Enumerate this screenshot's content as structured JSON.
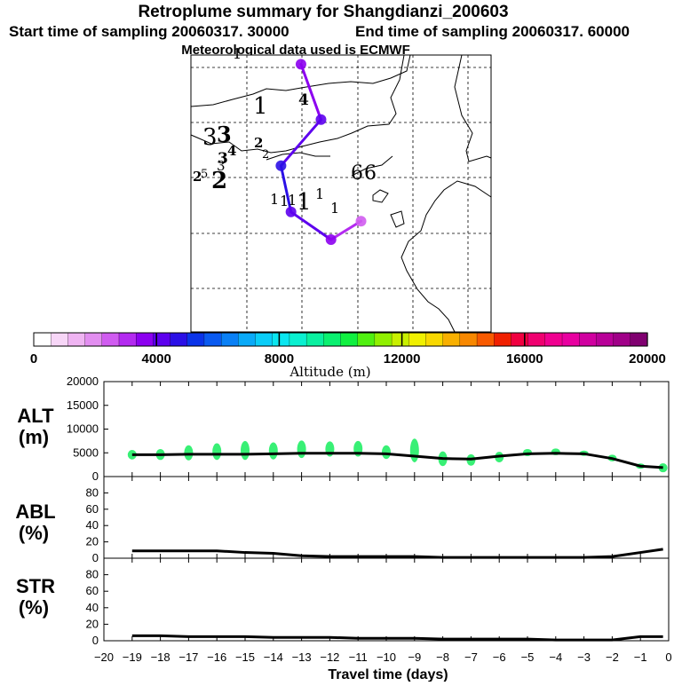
{
  "chart_data": {
    "type": "retroplume_summary",
    "title": "Retroplume summary for Shangdianzi_200603",
    "subtitle_start": "Start time of sampling 20060317. 30000",
    "subtitle_end": "End time of sampling 20060317. 60000",
    "subtitle_met": "Meteorological data used is ECMWF",
    "colorbar": {
      "label": "Altitude (m)",
      "range": [
        0,
        20000
      ],
      "ticks": [
        "0",
        "4000",
        "8000",
        "12000",
        "16000",
        "20000"
      ],
      "colors": [
        "#ffffff",
        "#f7d6f7",
        "#efb4f2",
        "#e28ef0",
        "#d05cf0",
        "#b32af0",
        "#8c00f0",
        "#5d00ee",
        "#2b10e6",
        "#0a33e8",
        "#0a5af0",
        "#0a80f5",
        "#0aaaf8",
        "#0acdf8",
        "#0ae6f0",
        "#0af0d0",
        "#0af0a0",
        "#0af070",
        "#10f040",
        "#50f010",
        "#90f000",
        "#c8f000",
        "#f0f000",
        "#f8d800",
        "#f8b000",
        "#f88800",
        "#f85a00",
        "#f02000",
        "#f00040",
        "#f00070",
        "#f00090",
        "#e800a0",
        "#d000a0",
        "#b80098",
        "#a00088",
        "#800070"
      ]
    },
    "map_labels": [
      "1",
      "1",
      "4",
      "3",
      "3",
      "2",
      "4",
      "3",
      "2",
      "2",
      "2",
      "3",
      "5",
      "6",
      "6",
      "1",
      "1",
      "1",
      "1",
      "1",
      "1"
    ],
    "trajectory_points": [
      {
        "label": "1",
        "lon": 115.5,
        "lat": 48.5,
        "alt": 3600
      },
      {
        "label": "4",
        "lon": 116.5,
        "lat": 45.5,
        "alt": 4000
      },
      {
        "label": "3",
        "lon": 114.5,
        "lat": 43.0,
        "alt": 4800
      },
      {
        "label": "2",
        "lon": 115.0,
        "lat": 40.5,
        "alt": 4400
      },
      {
        "label": "1",
        "lon": 117.0,
        "lat": 39.0,
        "alt": 3800
      },
      {
        "label": "6",
        "lon": 118.5,
        "lat": 40.0,
        "alt": 2500
      }
    ],
    "time_axis": {
      "label": "Travel time (days)",
      "range": [
        -20,
        0
      ],
      "ticks": [
        "−20",
        "−19",
        "−18",
        "−17",
        "−16",
        "−15",
        "−14",
        "−13",
        "−12",
        "−11",
        "−10",
        "−9",
        "−8",
        "−7",
        "−6",
        "−5",
        "−4",
        "−3",
        "−2",
        "−1",
        "0"
      ]
    },
    "alt_panel": {
      "ylabel": "ALT",
      "unit": "(m)",
      "ylim": [
        0,
        20000
      ],
      "yticks": [
        "0",
        "5000",
        "10000",
        "15000",
        "20000"
      ],
      "x": [
        -19,
        -18,
        -17,
        -16,
        -15,
        -14,
        -13,
        -12,
        -11,
        -10,
        -9,
        -8,
        -7,
        -6,
        -5,
        -4,
        -3,
        -2,
        -1,
        -0.2
      ],
      "values": [
        4600,
        4600,
        4700,
        4700,
        4700,
        4800,
        4900,
        4900,
        4900,
        4800,
        4300,
        3800,
        3700,
        4300,
        4800,
        4900,
        4800,
        3800,
        2200,
        1900
      ],
      "spread_x": [
        -19,
        -18,
        -17,
        -16,
        -15,
        -14,
        -13,
        -12,
        -11,
        -10,
        -9,
        -8,
        -7,
        -6,
        -5,
        -4,
        -3,
        -2,
        -1,
        -0.2
      ],
      "spread_low": [
        3600,
        3500,
        3400,
        3500,
        3500,
        3600,
        3900,
        4200,
        4200,
        3700,
        3000,
        2200,
        2300,
        3000,
        4300,
        4500,
        4400,
        3200,
        1800,
        900
      ],
      "spread_high": [
        5600,
        5800,
        6600,
        7000,
        7500,
        7200,
        7600,
        7400,
        7500,
        6600,
        8000,
        5300,
        4700,
        5200,
        5800,
        5900,
        5400,
        4600,
        2600,
        2800
      ]
    },
    "abl_panel": {
      "ylabel": "ABL",
      "unit": "(%)",
      "ylim": [
        0,
        100
      ],
      "yticks": [
        "0",
        "20",
        "40",
        "60",
        "80"
      ],
      "x": [
        -19,
        -18,
        -17,
        -16,
        -15,
        -14,
        -13,
        -12,
        -11,
        -10,
        -9,
        -8,
        -7,
        -6,
        -5,
        -4,
        -3,
        -2,
        -1,
        -0.2
      ],
      "values": [
        9,
        9,
        9,
        9,
        7,
        6,
        3,
        2,
        2,
        2,
        2,
        1,
        1,
        1,
        1,
        1,
        1,
        2,
        7,
        11
      ]
    },
    "str_panel": {
      "ylabel": "STR",
      "unit": "(%)",
      "ylim": [
        0,
        100
      ],
      "yticks": [
        "0",
        "20",
        "40",
        "60",
        "80"
      ],
      "x": [
        -19,
        -18,
        -17,
        -16,
        -15,
        -14,
        -13,
        -12,
        -11,
        -10,
        -9,
        -8,
        -7,
        -6,
        -5,
        -4,
        -3,
        -2,
        -1,
        -0.2
      ],
      "values": [
        6,
        6,
        5,
        5,
        5,
        4,
        4,
        4,
        3,
        3,
        3,
        2,
        2,
        2,
        2,
        1,
        1,
        1,
        5,
        5
      ]
    },
    "colors": {
      "line": "#000000",
      "spread": "#22ee66",
      "axis": "#000000"
    }
  }
}
